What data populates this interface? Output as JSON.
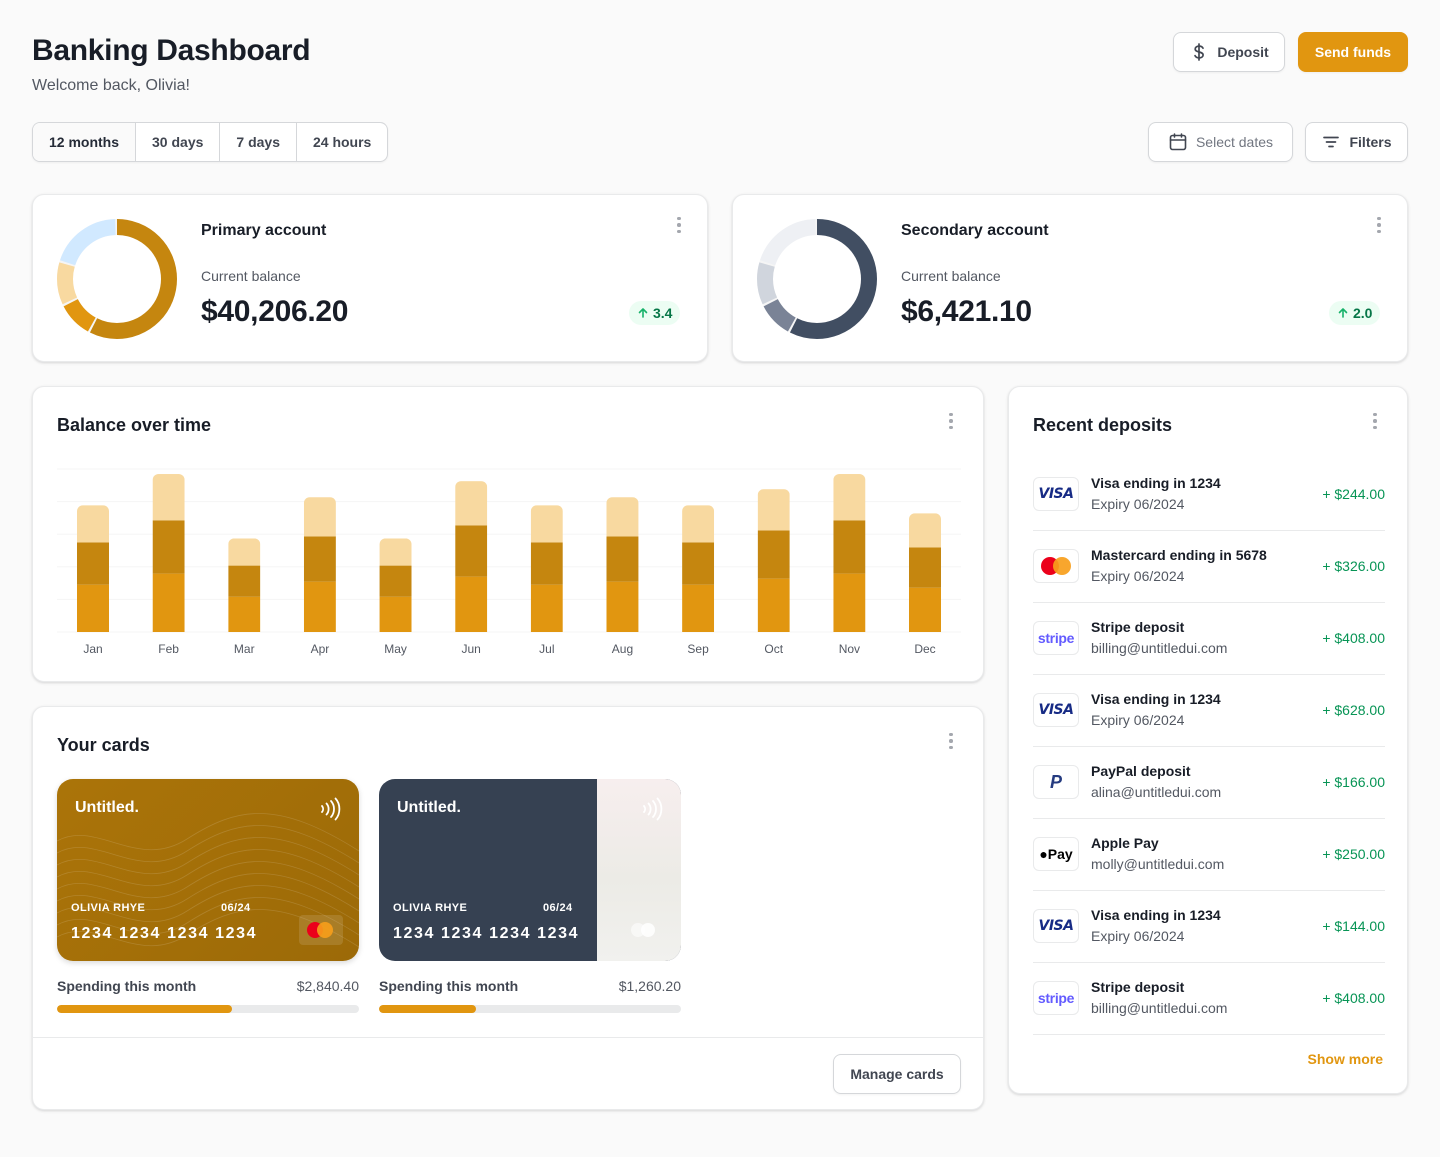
{
  "header": {
    "title": "Banking Dashboard",
    "subtitle": "Welcome back, Olivia!",
    "deposit_label": "Deposit",
    "send_label": "Send funds"
  },
  "filters": {
    "ranges": [
      "12 months",
      "30 days",
      "7 days",
      "24 hours"
    ],
    "active_range": "12 months",
    "select_dates_label": "Select dates",
    "filters_label": "Filters"
  },
  "accounts": [
    {
      "name": "Primary account",
      "balance_label": "Current balance",
      "balance": "$40,206.20",
      "change": "3.4",
      "ring": {
        "segments": [
          0.58,
          0.1,
          0.12,
          0.2
        ],
        "colors": [
          "#c5860f",
          "#e19610",
          "#f8d9a0",
          "#d1e9ff"
        ]
      }
    },
    {
      "name": "Secondary account",
      "balance_label": "Current balance",
      "balance": "$6,421.10",
      "change": "2.0",
      "ring": {
        "segments": [
          0.58,
          0.1,
          0.12,
          0.2
        ],
        "colors": [
          "#414e62",
          "#7a8396",
          "#d0d5dd",
          "#eef0f4"
        ]
      }
    }
  ],
  "balance_chart": {
    "title": "Balance over time"
  },
  "chart_data": {
    "type": "bar",
    "stacked": true,
    "categories": [
      "Jan",
      "Feb",
      "Mar",
      "Apr",
      "May",
      "Jun",
      "Jul",
      "Aug",
      "Sep",
      "Oct",
      "Nov",
      "Dec"
    ],
    "series": [
      {
        "values": [
          47,
          58,
          35,
          50,
          35,
          55,
          47,
          50,
          47,
          53,
          58,
          44
        ],
        "color": "#e19610"
      },
      {
        "values": [
          42,
          53,
          31,
          45,
          31,
          51,
          42,
          45,
          42,
          48,
          53,
          40
        ],
        "color": "#c5860f"
      },
      {
        "values": [
          37,
          46,
          27,
          39,
          27,
          44,
          37,
          39,
          37,
          41,
          46,
          34
        ],
        "color": "#f8d9a0"
      }
    ],
    "ylim": [
      0,
      162
    ],
    "grid": true,
    "xlabel": "",
    "ylabel": ""
  },
  "cards_section": {
    "title": "Your cards",
    "manage_label": "Manage cards",
    "cards": [
      {
        "brand": "Untitled.",
        "holder": "OLIVIA RHYE",
        "expiry": "06/24",
        "number": "1234 1234 1234 1234",
        "spending_label": "Spending this month",
        "spending": "$2,840.40",
        "progress": 0.58
      },
      {
        "brand": "Untitled.",
        "holder": "OLIVIA RHYE",
        "expiry": "06/24",
        "number": "1234 1234 1234 1234",
        "spending_label": "Spending this month",
        "spending": "$1,260.20",
        "progress": 0.32
      }
    ]
  },
  "deposits": {
    "title": "Recent deposits",
    "show_more": "Show more",
    "items": [
      {
        "logo": "visa-logo",
        "logo_text": "VISA",
        "name": "Visa ending in 1234",
        "sub": "Expiry 06/2024",
        "amount": "+ $244.00"
      },
      {
        "logo": "mastercard-logo",
        "logo_text": "",
        "name": "Mastercard ending in 5678",
        "sub": "Expiry 06/2024",
        "amount": "+ $326.00"
      },
      {
        "logo": "stripe-logo",
        "logo_text": "stripe",
        "name": "Stripe deposit",
        "sub": "billing@untitledui.com",
        "amount": "+ $408.00"
      },
      {
        "logo": "visa-logo",
        "logo_text": "VISA",
        "name": "Visa ending in 1234",
        "sub": "Expiry 06/2024",
        "amount": "+ $628.00"
      },
      {
        "logo": "paypal-logo",
        "logo_text": "P",
        "name": "PayPal deposit",
        "sub": "alina@untitledui.com",
        "amount": "+ $166.00"
      },
      {
        "logo": "apple-pay-logo",
        "logo_text": "Pay",
        "name": "Apple Pay",
        "sub": "molly@untitledui.com",
        "amount": "+ $250.00"
      },
      {
        "logo": "visa-logo",
        "logo_text": "VISA",
        "name": "Visa ending in 1234",
        "sub": "Expiry 06/2024",
        "amount": "+ $144.00"
      },
      {
        "logo": "stripe-logo",
        "logo_text": "stripe",
        "name": "Stripe deposit",
        "sub": "billing@untitledui.com",
        "amount": "+ $408.00"
      }
    ]
  }
}
